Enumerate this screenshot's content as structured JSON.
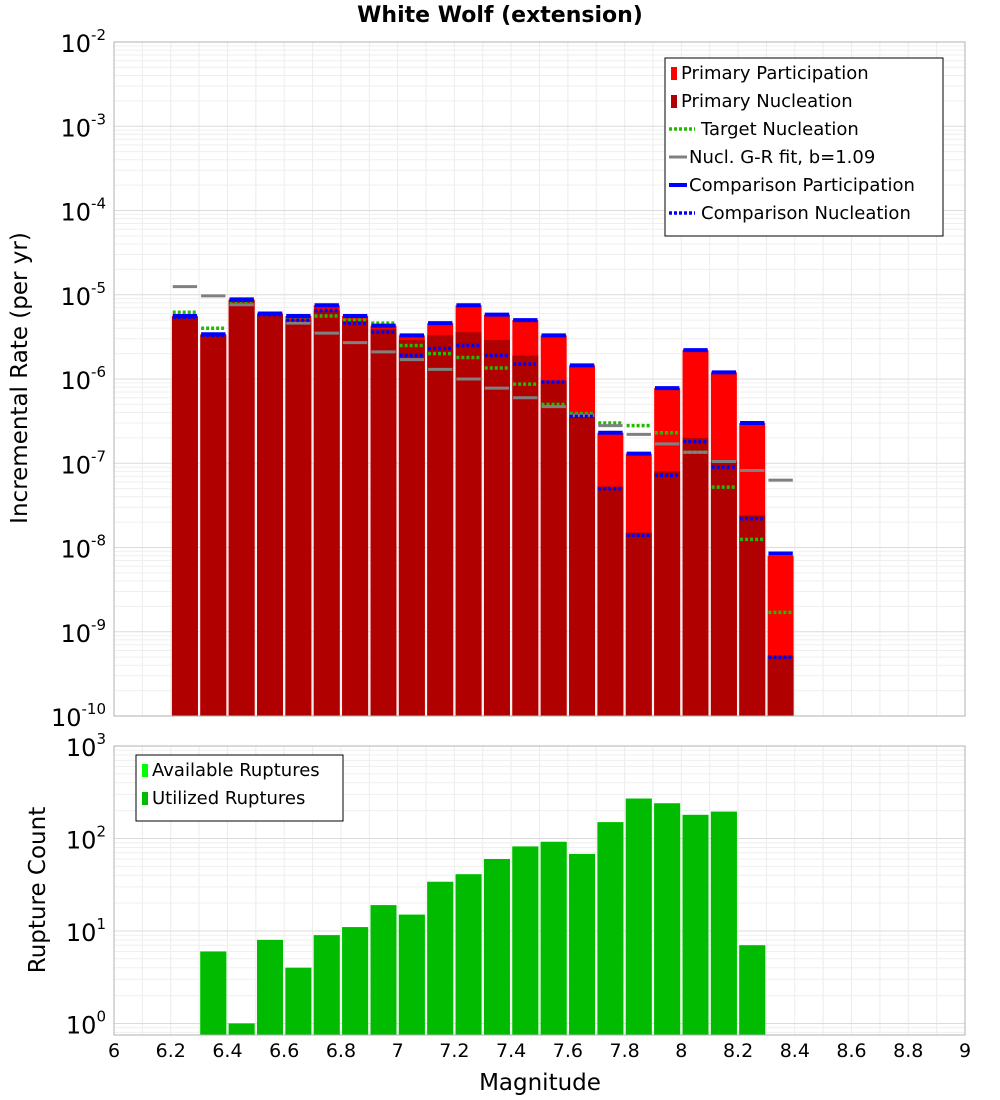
{
  "chart_data": [
    {
      "type": "bar",
      "title": "White Wolf (extension)",
      "ylabel": "Incremental Rate (per yr)",
      "xlabel": "",
      "xlim": [
        6,
        9
      ],
      "ylim": [
        1e-10,
        0.01
      ],
      "yscale": "log",
      "grid": true,
      "legend_position": "top-right",
      "x": [
        6.25,
        6.35,
        6.45,
        6.55,
        6.65,
        6.75,
        6.85,
        6.95,
        7.05,
        7.15,
        7.25,
        7.35,
        7.45,
        7.55,
        7.65,
        7.75,
        7.85,
        7.95,
        8.05,
        8.15,
        8.25,
        8.35
      ],
      "bin_width": 0.1,
      "series": [
        {
          "name": "Primary Participation",
          "kind": "bar",
          "color": "#ff0000",
          "values": [
            5.6e-06,
            3.4e-06,
            8.8e-06,
            6e-06,
            5.6e-06,
            7.5e-06,
            5.6e-06,
            4.3e-06,
            3.3e-06,
            4.6e-06,
            7.5e-06,
            5.8e-06,
            5e-06,
            3.3e-06,
            1.45e-06,
            2.3e-07,
            1.3e-07,
            7.8e-07,
            2.2e-06,
            1.2e-06,
            3e-07,
            8e-09
          ]
        },
        {
          "name": "Primary Nucleation",
          "kind": "bar",
          "color": "#b00000",
          "values": [
            5.4e-06,
            3.3e-06,
            8.6e-06,
            5.8e-06,
            5e-06,
            6.5e-06,
            5e-06,
            3.9e-06,
            2.9e-06,
            3.3e-06,
            3.6e-06,
            2.9e-06,
            1.9e-06,
            9.6e-07,
            3.7e-07,
            5.3e-08,
            1.5e-08,
            8e-08,
            2e-07,
            1.05e-07,
            2.4e-08,
            5.2e-10
          ]
        },
        {
          "name": "Target Nucleation",
          "kind": "dotted",
          "color": "#22bb00",
          "values": [
            6.2e-06,
            4e-06,
            8.4e-06,
            5.9e-06,
            5.3e-06,
            5.6e-06,
            5e-06,
            4.6e-06,
            2.5e-06,
            2e-06,
            1.8e-06,
            1.35e-06,
            8.7e-07,
            5e-07,
            3.9e-07,
            3e-07,
            2.8e-07,
            2.3e-07,
            1.35e-07,
            5.2e-08,
            1.25e-08,
            1.7e-09
          ]
        },
        {
          "name": "Nucl. G-R fit, b=1.09",
          "kind": "line",
          "color": "#808080",
          "values": [
            1.25e-05,
            9.7e-06,
            7.6e-06,
            5.9e-06,
            4.6e-06,
            3.5e-06,
            2.7e-06,
            2.1e-06,
            1.7e-06,
            1.3e-06,
            1e-06,
            7.8e-07,
            6e-07,
            4.7e-07,
            3.7e-07,
            2.8e-07,
            2.2e-07,
            1.7e-07,
            1.35e-07,
            1.05e-07,
            8.2e-08,
            6.3e-08
          ]
        },
        {
          "name": "Comparison Participation",
          "kind": "line",
          "color": "#0000ff",
          "values": [
            5.6e-06,
            3.4e-06,
            8.8e-06,
            6e-06,
            5.6e-06,
            7.5e-06,
            5.6e-06,
            4.3e-06,
            3.3e-06,
            4.6e-06,
            7.5e-06,
            5.8e-06,
            5e-06,
            3.3e-06,
            1.45e-06,
            2.3e-07,
            1.3e-07,
            7.8e-07,
            2.2e-06,
            1.2e-06,
            3e-07,
            8.5e-09
          ]
        },
        {
          "name": "Comparison Nucleation",
          "kind": "dotted",
          "color": "#0000ff",
          "values": [
            5.4e-06,
            3.3e-06,
            8.6e-06,
            5.8e-06,
            5e-06,
            6.5e-06,
            4.6e-06,
            3.6e-06,
            1.9e-06,
            2.3e-06,
            2.5e-06,
            1.9e-06,
            1.5e-06,
            9.2e-07,
            3.6e-07,
            5e-08,
            1.4e-08,
            7.2e-08,
            1.8e-07,
            9e-08,
            2.2e-08,
            5e-10
          ]
        }
      ],
      "ytick_exponents": [
        -10,
        -9,
        -8,
        -7,
        -6,
        -5,
        -4,
        -3,
        -2
      ]
    },
    {
      "type": "bar",
      "title": "",
      "ylabel": "Rupture Count",
      "xlabel": "Magnitude",
      "xlim": [
        6,
        9
      ],
      "ylim": [
        0.75,
        1000
      ],
      "yscale": "log",
      "grid": true,
      "legend_position": "top-left",
      "x": [
        6.25,
        6.35,
        6.45,
        6.55,
        6.65,
        6.75,
        6.85,
        6.95,
        7.05,
        7.15,
        7.25,
        7.35,
        7.45,
        7.55,
        7.65,
        7.75,
        7.85,
        7.95,
        8.05,
        8.15,
        8.25,
        8.35
      ],
      "bin_width": 0.1,
      "series": [
        {
          "name": "Available Ruptures",
          "kind": "bar",
          "color": "#00ff00",
          "values": [
            0,
            6,
            1,
            8,
            4,
            9,
            11,
            19,
            15,
            34,
            41,
            60,
            82,
            92,
            68,
            150,
            270,
            240,
            180,
            195,
            7,
            0
          ]
        },
        {
          "name": "Utilized Ruptures",
          "kind": "bar",
          "color": "#00bb00",
          "values": [
            0,
            6,
            1,
            8,
            4,
            9,
            11,
            19,
            15,
            34,
            41,
            60,
            82,
            92,
            68,
            150,
            270,
            240,
            180,
            195,
            7,
            0
          ]
        }
      ],
      "ytick_exponents": [
        0,
        1,
        2,
        3
      ],
      "xticks": [
        "6",
        "6.2",
        "6.4",
        "6.6",
        "6.8",
        "7",
        "7.2",
        "7.4",
        "7.6",
        "7.8",
        "8",
        "8.2",
        "8.4",
        "8.6",
        "8.8",
        "9"
      ]
    }
  ]
}
